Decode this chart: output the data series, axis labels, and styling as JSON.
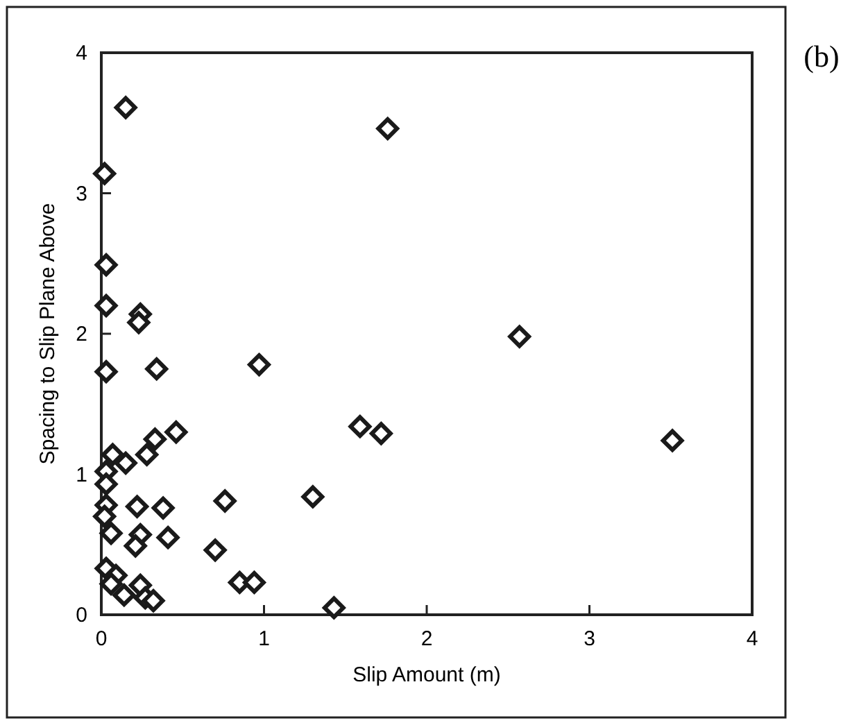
{
  "chart_data": {
    "type": "scatter",
    "xlabel": "Slip Amount (m)",
    "ylabel": "Spacing to Slip Plane Above",
    "annotations": [
      "(b)"
    ],
    "x": [
      0.15,
      1.76,
      0.02,
      0.03,
      0.03,
      0.24,
      0.23,
      0.03,
      0.34,
      0.97,
      1.59,
      1.72,
      0.46,
      0.33,
      0.28,
      0.07,
      0.15,
      0.03,
      0.03,
      1.3,
      0.76,
      0.22,
      0.38,
      0.03,
      0.02,
      0.06,
      0.24,
      0.41,
      0.21,
      0.7,
      0.03,
      0.09,
      0.06,
      0.14,
      0.24,
      0.27,
      0.32,
      0.85,
      0.94,
      1.43,
      2.57,
      3.51
    ],
    "series": [
      {
        "color": "#1a1a1a",
        "values": [
          3.61,
          3.46,
          3.14,
          2.49,
          2.2,
          2.14,
          2.08,
          1.73,
          1.75,
          1.78,
          1.34,
          1.29,
          1.3,
          1.25,
          1.14,
          1.14,
          1.08,
          1.02,
          0.93,
          0.84,
          0.81,
          0.77,
          0.76,
          0.78,
          0.7,
          0.58,
          0.57,
          0.55,
          0.49,
          0.46,
          0.33,
          0.28,
          0.22,
          0.14,
          0.21,
          0.12,
          0.1,
          0.23,
          0.23,
          0.05,
          1.98,
          1.24
        ]
      }
    ],
    "xlim": [
      0,
      4
    ],
    "ylim": [
      0,
      4
    ],
    "xticks": [
      0,
      1,
      2,
      3,
      4
    ],
    "yticks": [
      0,
      1,
      2,
      3,
      4
    ],
    "marker": "diamond",
    "grid": false
  }
}
